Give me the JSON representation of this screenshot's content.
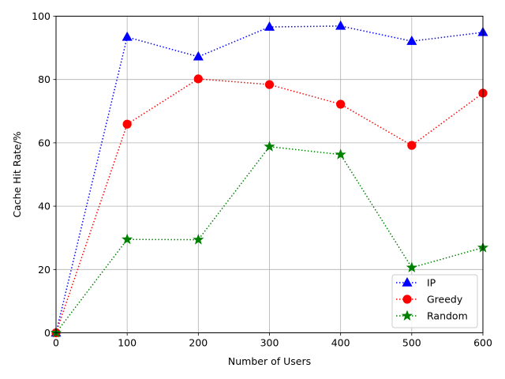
{
  "chart_data": {
    "type": "line",
    "title": "",
    "xlabel": "Number of Users",
    "ylabel": "Cache Hit Rate/%",
    "xlim": [
      0,
      600
    ],
    "ylim": [
      0,
      100
    ],
    "x_ticks": [
      0,
      100,
      200,
      300,
      400,
      500,
      600
    ],
    "y_ticks": [
      0,
      20,
      40,
      60,
      80,
      100
    ],
    "x_tick_labels": [
      "0",
      "100",
      "200",
      "300",
      "400",
      "500",
      "600"
    ],
    "y_tick_labels": [
      "0",
      "20",
      "40",
      "60",
      "80",
      "100"
    ],
    "grid": true,
    "legend_position": "lower-right",
    "x": [
      0,
      100,
      200,
      300,
      400,
      500,
      600
    ],
    "series": [
      {
        "name": " IP",
        "color": "#0000ff",
        "marker": "triangle",
        "line_style": "dotted",
        "values": [
          0,
          93.4,
          87.2,
          96.6,
          96.9,
          92.1,
          94.9
        ]
      },
      {
        "name": "Greedy",
        "color": "#ff0000",
        "marker": "circle",
        "line_style": "dotted",
        "values": [
          0,
          65.9,
          80.2,
          78.4,
          72.2,
          59.2,
          75.7
        ]
      },
      {
        "name": "Random",
        "color": "#008000",
        "marker": "star",
        "line_style": "dotted",
        "values": [
          0,
          29.5,
          29.4,
          58.8,
          56.3,
          20.6,
          26.9
        ]
      }
    ]
  }
}
